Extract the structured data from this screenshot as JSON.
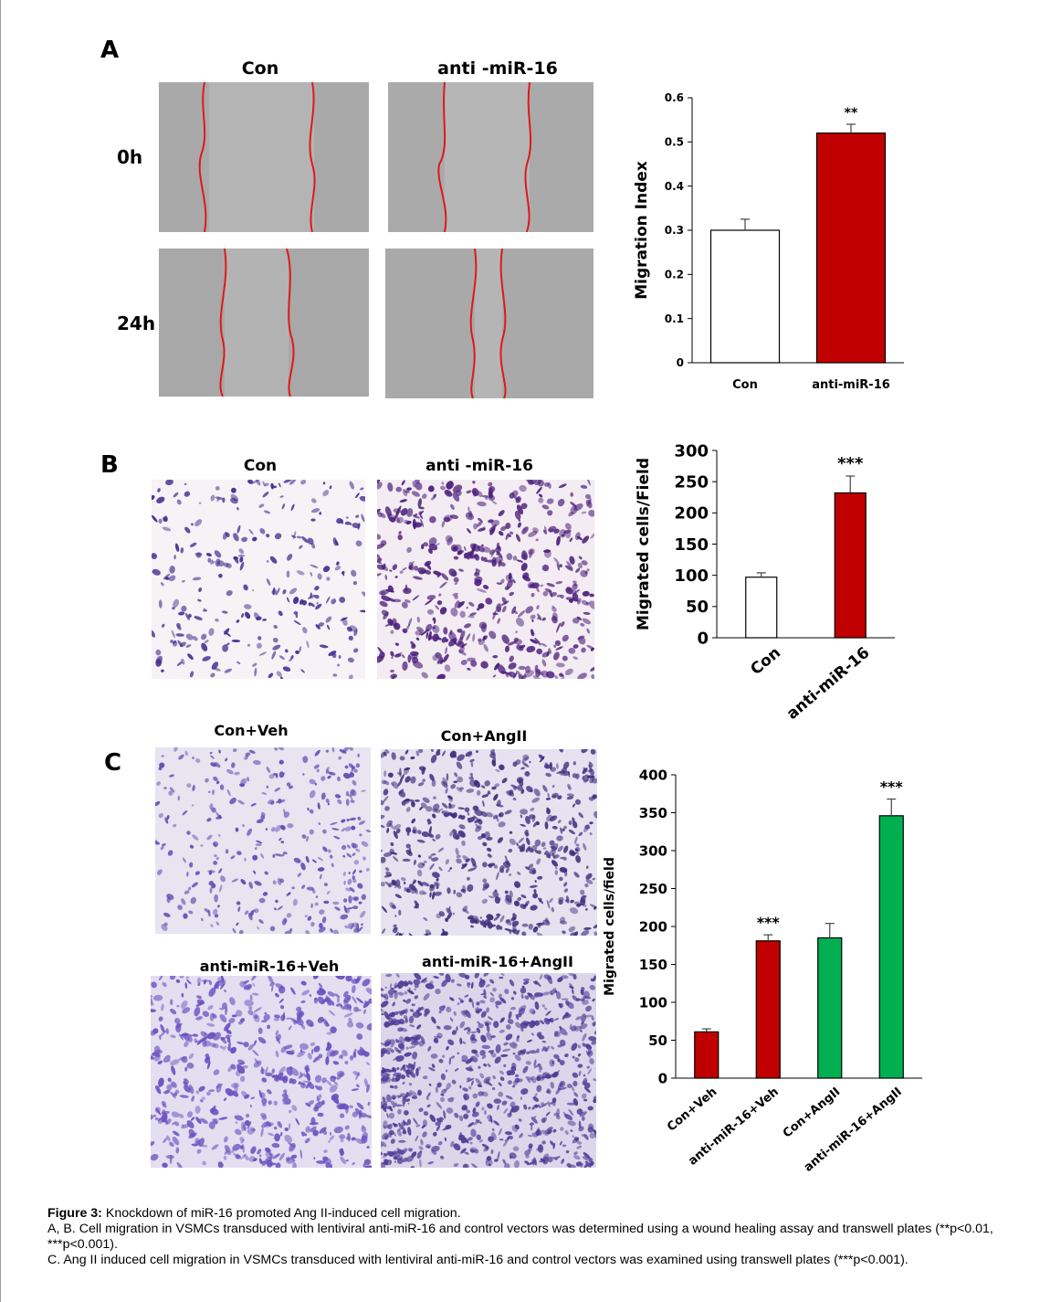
{
  "panels": {
    "A": {
      "letter": "A",
      "col_labels": [
        "Con",
        "anti -miR-16"
      ],
      "row_labels": [
        "0h",
        "24h"
      ]
    },
    "B": {
      "letter": "B",
      "col_labels": [
        "Con",
        "anti -miR-16"
      ]
    },
    "C": {
      "letter": "C",
      "img_labels": [
        "Con+Veh",
        "Con+AngII",
        "anti-miR-16+Veh",
        "anti-miR-16+AngII"
      ]
    }
  },
  "colors": {
    "white_bar": "#ffffff",
    "red_bar": "#c00000",
    "green_bar": "#00b050",
    "scratch_line": "#e01818",
    "stain": "#5b3fa8"
  },
  "chart_data": [
    {
      "type": "bar",
      "categories": [
        "Con",
        "anti-miR-16"
      ],
      "values": [
        0.3,
        0.52
      ],
      "errors": [
        0.025,
        0.02
      ],
      "colors": [
        "#ffffff",
        "#c00000"
      ],
      "significance": [
        "",
        "**"
      ],
      "ylabel": "Migration Index",
      "yticks": [
        "0",
        "0.1",
        "0.2",
        "0.3",
        "0.4",
        "0.5",
        "0.6"
      ],
      "ylim": [
        0,
        0.6
      ]
    },
    {
      "type": "bar",
      "categories": [
        "Con",
        "anti-miR-16"
      ],
      "values": [
        97,
        232
      ],
      "errors": [
        7,
        27
      ],
      "colors": [
        "#ffffff",
        "#c00000"
      ],
      "significance": [
        "",
        "***"
      ],
      "ylabel": "Migrated cells/Field",
      "yticks": [
        "0",
        "50",
        "100",
        "150",
        "200",
        "250",
        "300"
      ],
      "ylim": [
        0,
        300
      ]
    },
    {
      "type": "bar",
      "categories": [
        "Con+Veh",
        "anti-miR-16+Veh",
        "Con+AngII",
        "anti-miR-16+AngII"
      ],
      "values": [
        61,
        181,
        185,
        346
      ],
      "errors": [
        4,
        8,
        19,
        22
      ],
      "colors": [
        "#c00000",
        "#c00000",
        "#00b050",
        "#00b050"
      ],
      "significance": [
        "",
        "***",
        "",
        "***"
      ],
      "ylabel": "Migrated cells/field",
      "yticks": [
        "0",
        "50",
        "100",
        "150",
        "200",
        "250",
        "300",
        "350",
        "400"
      ],
      "ylim": [
        0,
        400
      ]
    }
  ],
  "caption": {
    "title": "Figure 3:",
    "title_text": " Knockdown of miR-16 promoted Ang II-induced cell migration.",
    "line1": "A, B. Cell migration in VSMCs transduced with lentiviral anti-miR-16 and control vectors was determined using a wound healing assay and transwell plates (**p<0.01, ***p<0.001).",
    "line2": "C. Ang II induced cell migration in VSMCs transduced with lentiviral anti-miR-16 and control vectors was examined using transwell plates (***p<0.001)."
  }
}
